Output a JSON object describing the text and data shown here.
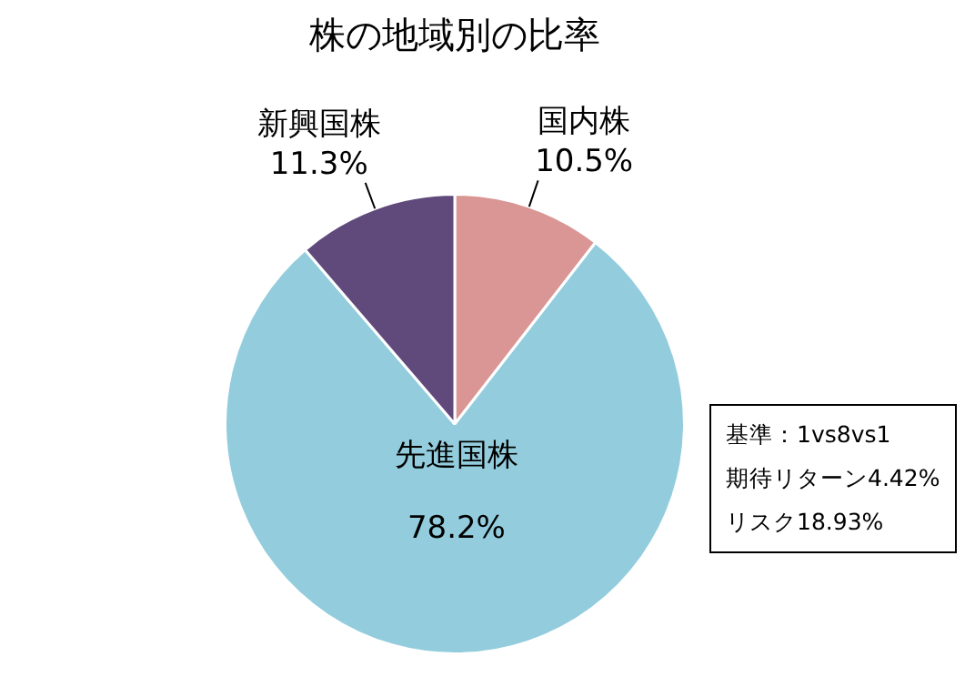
{
  "chart_data": {
    "type": "pie",
    "title": "株の地域別の比率",
    "categories": [
      "国内株",
      "先進国株",
      "新興国株"
    ],
    "values": [
      10.5,
      78.2,
      11.3
    ],
    "value_labels": [
      "10.5%",
      "78.2%",
      "11.3%"
    ],
    "colors": [
      "#d99694",
      "#93cddd",
      "#604a7b"
    ],
    "legend": false,
    "annotations": [
      "基準：1vs8vs1",
      "期待リターン4.42%",
      "リスク18.93%"
    ]
  }
}
